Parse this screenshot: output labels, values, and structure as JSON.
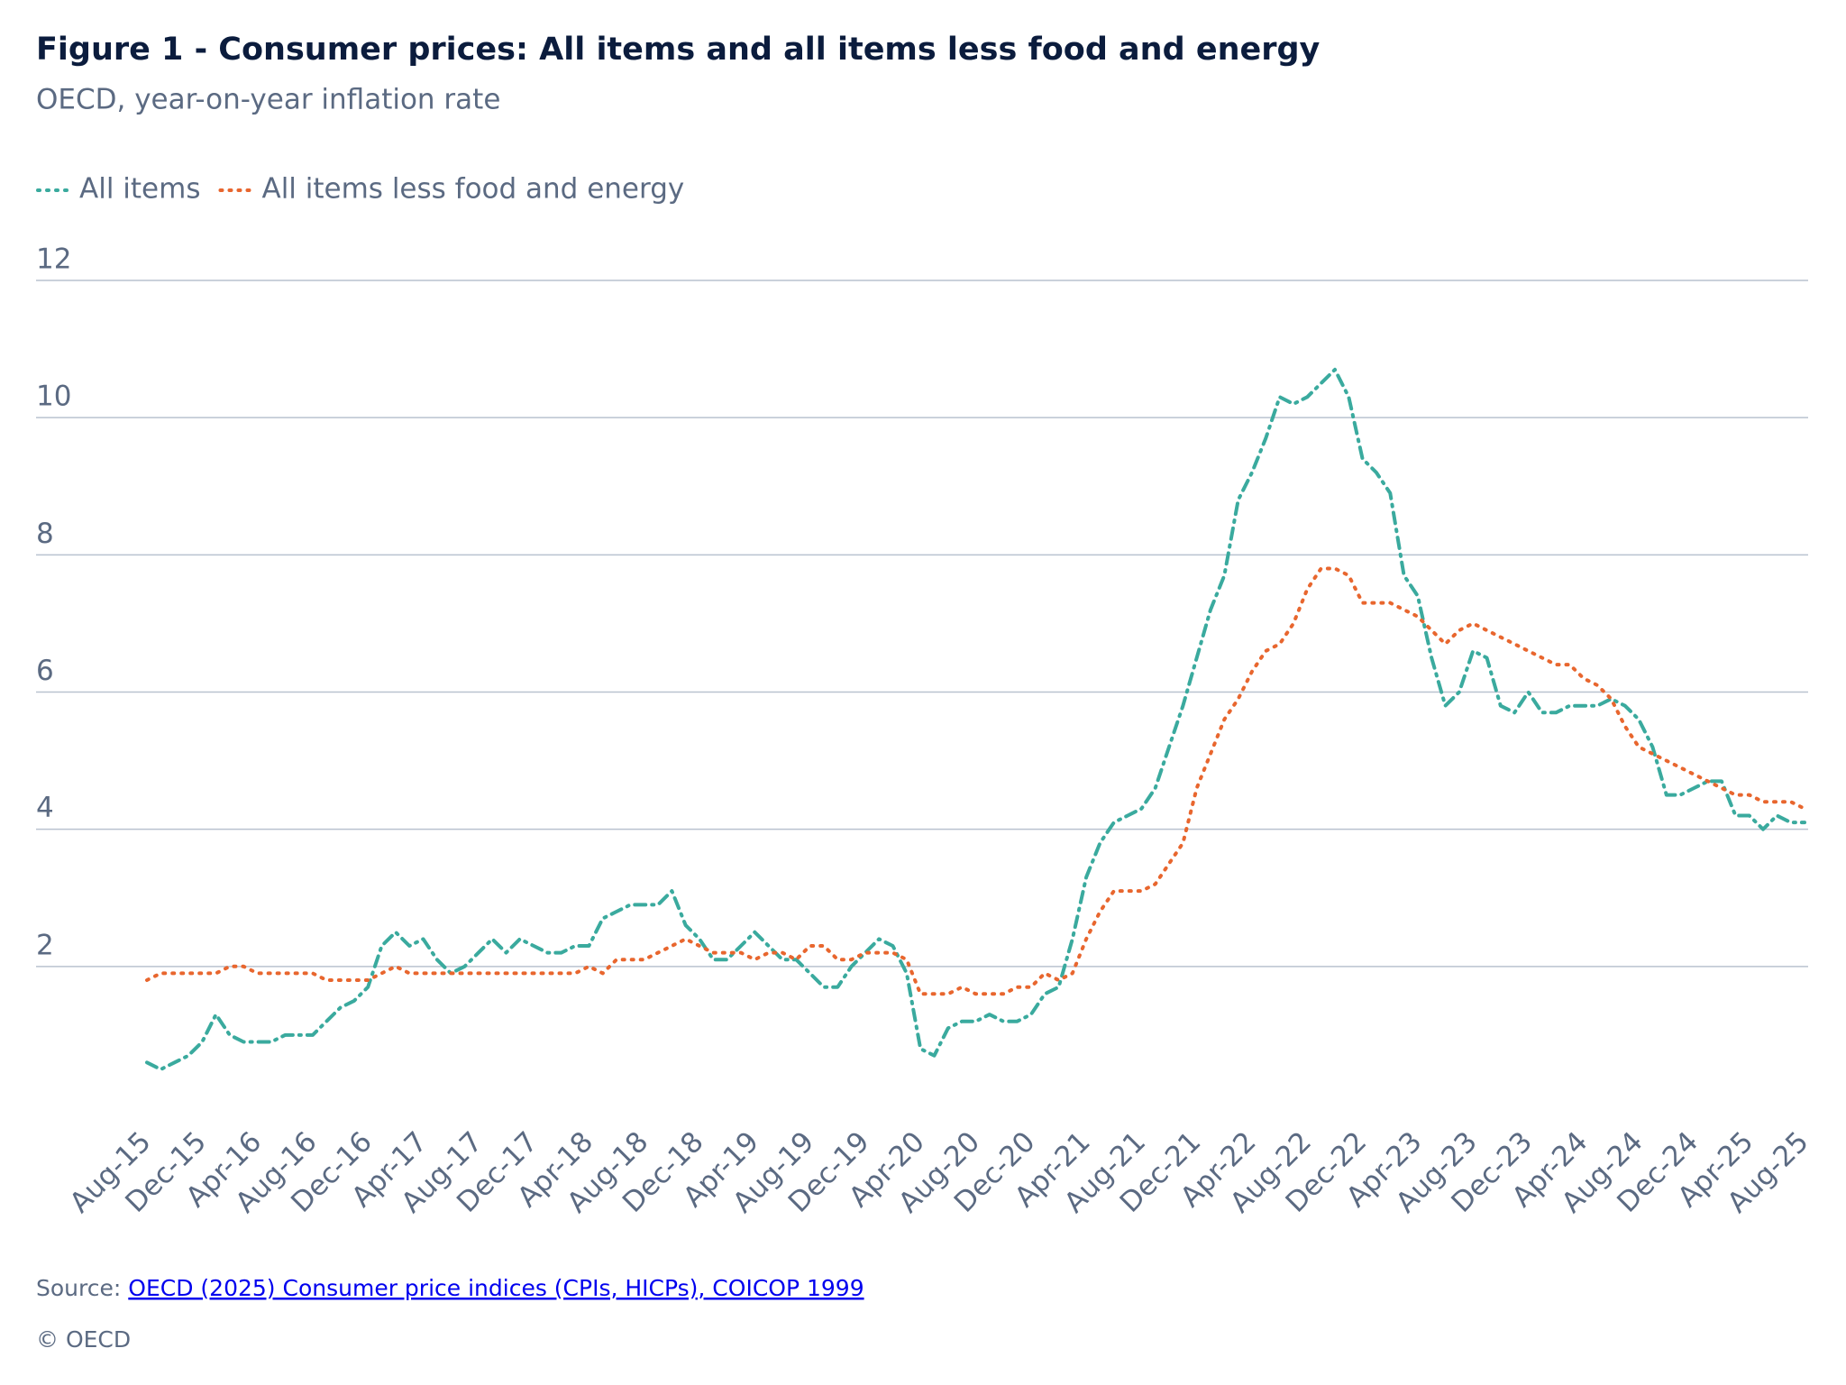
{
  "chart_data": {
    "type": "line",
    "title": "Figure 1 - Consumer prices: All items and all items less food and energy",
    "subtitle": "OECD, year-on-year inflation rate",
    "categories": [
      "Aug-15",
      null,
      null,
      null,
      "Dec-15",
      null,
      null,
      null,
      "Apr-16",
      null,
      null,
      null,
      "Aug-16",
      null,
      null,
      null,
      "Dec-16",
      null,
      null,
      null,
      "Apr-17",
      null,
      null,
      null,
      "Aug-17",
      null,
      null,
      null,
      "Dec-17",
      null,
      null,
      null,
      "Apr-18",
      null,
      null,
      null,
      "Aug-18",
      null,
      null,
      null,
      "Dec-18",
      null,
      null,
      null,
      "Apr-19",
      null,
      null,
      null,
      "Aug-19",
      null,
      null,
      null,
      "Dec-19",
      null,
      null,
      null,
      "Apr-20",
      null,
      null,
      null,
      "Aug-20",
      null,
      null,
      null,
      "Dec-20",
      null,
      null,
      null,
      "Apr-21",
      null,
      null,
      null,
      "Aug-21",
      null,
      null,
      null,
      "Dec-21",
      null,
      null,
      null,
      "Apr-22",
      null,
      null,
      null,
      "Aug-22",
      null,
      null,
      null,
      "Dec-22",
      null,
      null,
      null,
      "Apr-23",
      null,
      null,
      null,
      "Aug-23",
      null,
      null,
      null,
      "Dec-23",
      null,
      null,
      null,
      "Apr-24",
      null,
      null,
      null,
      "Aug-24",
      null,
      null,
      null,
      "Dec-24",
      null,
      null,
      null,
      "Apr-25",
      null,
      null,
      null,
      "Aug-25"
    ],
    "series": [
      {
        "name": "All items",
        "color": "#3aaa9e",
        "values": [
          0.6,
          0.5,
          0.6,
          0.7,
          0.9,
          1.3,
          1.0,
          0.9,
          0.9,
          0.9,
          1.0,
          1.0,
          1.0,
          1.2,
          1.4,
          1.5,
          1.7,
          2.3,
          2.5,
          2.3,
          2.4,
          2.1,
          1.9,
          2.0,
          2.2,
          2.4,
          2.2,
          2.4,
          2.3,
          2.2,
          2.2,
          2.3,
          2.3,
          2.7,
          2.8,
          2.9,
          2.9,
          2.9,
          3.1,
          2.6,
          2.4,
          2.1,
          2.1,
          2.3,
          2.5,
          2.3,
          2.1,
          2.1,
          1.9,
          1.7,
          1.7,
          2.0,
          2.2,
          2.4,
          2.3,
          1.9,
          0.8,
          0.7,
          1.1,
          1.2,
          1.2,
          1.3,
          1.2,
          1.2,
          1.3,
          1.6,
          1.7,
          2.4,
          3.3,
          3.8,
          4.1,
          4.2,
          4.3,
          4.6,
          5.2,
          5.8,
          6.5,
          7.2,
          7.7,
          8.8,
          9.2,
          9.7,
          10.3,
          10.2,
          10.3,
          10.5,
          10.7,
          10.3,
          9.4,
          9.2,
          8.9,
          7.7,
          7.4,
          6.5,
          5.8,
          6.0,
          6.6,
          6.5,
          5.8,
          5.7,
          6.0,
          5.7,
          5.7,
          5.8,
          5.8,
          5.8,
          5.9,
          5.8,
          5.6,
          5.2,
          4.5,
          4.5,
          4.6,
          4.7,
          4.7,
          4.2,
          4.2,
          4.0,
          4.2,
          4.1,
          4.1
        ]
      },
      {
        "name": "All items less food and energy",
        "color": "#e8662e",
        "values": [
          1.8,
          1.9,
          1.9,
          1.9,
          1.9,
          1.9,
          2.0,
          2.0,
          1.9,
          1.9,
          1.9,
          1.9,
          1.9,
          1.8,
          1.8,
          1.8,
          1.8,
          1.9,
          2.0,
          1.9,
          1.9,
          1.9,
          1.9,
          1.9,
          1.9,
          1.9,
          1.9,
          1.9,
          1.9,
          1.9,
          1.9,
          1.9,
          2.0,
          1.9,
          2.1,
          2.1,
          2.1,
          2.2,
          2.3,
          2.4,
          2.3,
          2.2,
          2.2,
          2.2,
          2.1,
          2.2,
          2.2,
          2.1,
          2.3,
          2.3,
          2.1,
          2.1,
          2.2,
          2.2,
          2.2,
          2.1,
          1.6,
          1.6,
          1.6,
          1.7,
          1.6,
          1.6,
          1.6,
          1.7,
          1.7,
          1.9,
          1.8,
          1.9,
          2.4,
          2.8,
          3.1,
          3.1,
          3.1,
          3.2,
          3.5,
          3.8,
          4.6,
          5.1,
          5.6,
          5.9,
          6.3,
          6.6,
          6.7,
          7.0,
          7.5,
          7.8,
          7.8,
          7.7,
          7.3,
          7.3,
          7.3,
          7.2,
          7.1,
          6.9,
          6.7,
          6.9,
          7.0,
          6.9,
          6.8,
          6.7,
          6.6,
          6.5,
          6.4,
          6.4,
          6.2,
          6.1,
          5.9,
          5.5,
          5.2,
          5.1,
          5.0,
          4.9,
          4.8,
          4.7,
          4.6,
          4.5,
          4.5,
          4.4,
          4.4,
          4.4,
          4.3
        ]
      }
    ],
    "ylim": [
      0,
      12
    ],
    "yticks": [
      2,
      4,
      6,
      8,
      10,
      12
    ],
    "grid": true
  },
  "footer": {
    "source_label": "Source:",
    "source_link": "OECD (2025) Consumer price indices (CPIs, HICPs), COICOP 1999",
    "copyright": "© OECD"
  }
}
